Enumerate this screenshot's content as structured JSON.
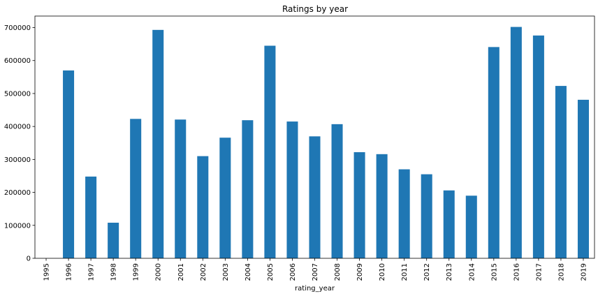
{
  "chart_data": {
    "type": "bar",
    "title": "Ratings by year",
    "xlabel": "rating_year",
    "ylabel": "",
    "ylim": [
      0,
      735000
    ],
    "yticks": [
      0,
      100000,
      200000,
      300000,
      400000,
      500000,
      600000,
      700000
    ],
    "bar_color": "#1f77b4",
    "grid": false,
    "legend": "none",
    "categories": [
      "1995",
      "1996",
      "1997",
      "1998",
      "1999",
      "2000",
      "2001",
      "2002",
      "2003",
      "2004",
      "2005",
      "2006",
      "2007",
      "2008",
      "2009",
      "2010",
      "2011",
      "2012",
      "2013",
      "2014",
      "2015",
      "2016",
      "2017",
      "2018",
      "2019"
    ],
    "values": [
      0,
      570000,
      248000,
      108000,
      423000,
      693000,
      421000,
      310000,
      366000,
      419000,
      645000,
      415000,
      370000,
      407000,
      322000,
      316000,
      270000,
      255000,
      206000,
      190000,
      641000,
      702000,
      676000,
      523000,
      481000
    ]
  }
}
